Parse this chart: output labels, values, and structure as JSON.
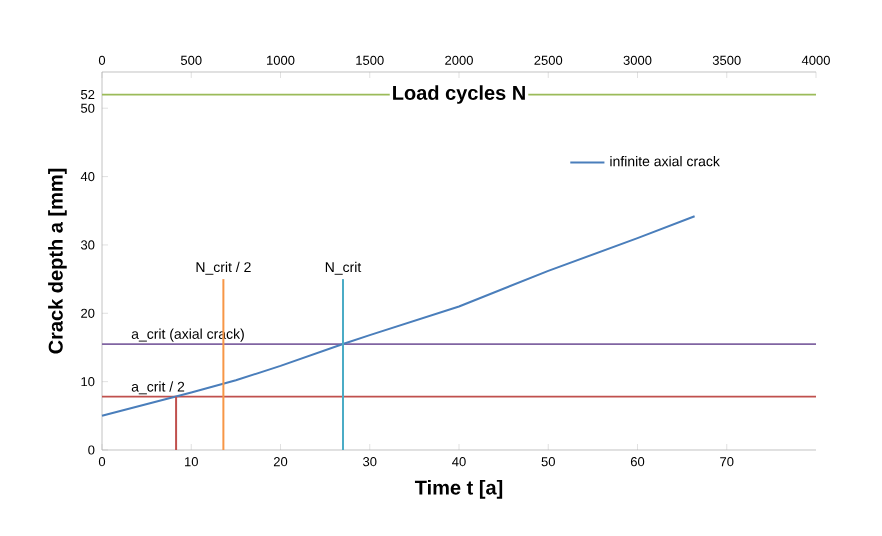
{
  "chart_data": {
    "type": "line",
    "xlabel": "Time t [a]",
    "ylabel": "Crack depth a [mm]",
    "x2label": "Load cycles N",
    "xlim": [
      0,
      80
    ],
    "xticks": [
      0,
      10,
      20,
      30,
      40,
      50,
      60,
      70
    ],
    "ylim": [
      0,
      55.3
    ],
    "yticks": [
      0,
      10,
      20,
      30,
      40,
      50,
      52
    ],
    "x2lim": [
      0,
      4000
    ],
    "x2ticks": [
      0,
      500,
      1000,
      1500,
      2000,
      2500,
      3000,
      3500,
      4000
    ],
    "legend": "top right",
    "line_style": "solid",
    "marker": "none",
    "series": [
      {
        "name": "infinite axial crack",
        "color": "#4a7ebb",
        "x": [
          0,
          5,
          10,
          15,
          20,
          27,
          30,
          40,
          50,
          60,
          66.4
        ],
        "values": [
          5,
          6.7,
          8.4,
          10.2,
          12.3,
          15.5,
          16.8,
          21,
          26.2,
          31,
          34.2
        ]
      },
      {
        "color": "#c0504d",
        "x": [
          8.3,
          8.3
        ],
        "values": [
          7.8,
          0
        ]
      },
      {
        "color": "#f79646",
        "x": [
          13.6,
          13.6
        ],
        "values": [
          25,
          0
        ]
      },
      {
        "color": "#4bacc6",
        "x": [
          27,
          27
        ],
        "values": [
          25,
          0
        ]
      }
    ],
    "ref_lines": [
      {
        "axis": "y",
        "value": 52,
        "color": "#9bbb59"
      },
      {
        "axis": "y",
        "value": 15.5,
        "label": "a_crit (axial crack)",
        "color": "#8064a2"
      },
      {
        "axis": "y",
        "value": 7.8,
        "label": "a_crit / 2",
        "color": "#c0504d"
      }
    ],
    "annotations": [
      {
        "text": "N_crit / 2",
        "x": 13.6,
        "y": 25
      },
      {
        "text": "N_crit",
        "x": 27,
        "y": 25
      }
    ]
  }
}
